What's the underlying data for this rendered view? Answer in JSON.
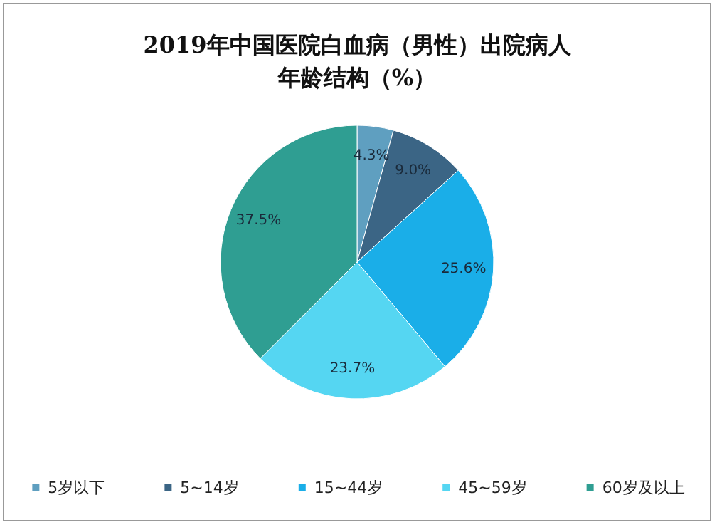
{
  "chart_data": {
    "type": "pie",
    "title": "2019年中国医院白血病（男性）出院病人年龄结构（%）",
    "categories": [
      "5岁以下",
      "5~14岁",
      "15~44岁",
      "45~59岁",
      "60岁及以上"
    ],
    "values": [
      4.3,
      9.0,
      25.6,
      23.7,
      37.5
    ],
    "value_labels": [
      "4.3%",
      "9.0%",
      "25.6%",
      "23.7%",
      "37.5%"
    ],
    "colors": [
      "#5f9fc0",
      "#3b6585",
      "#1aaee8",
      "#55d6f2",
      "#2f9e92"
    ],
    "legend": "bottom"
  }
}
